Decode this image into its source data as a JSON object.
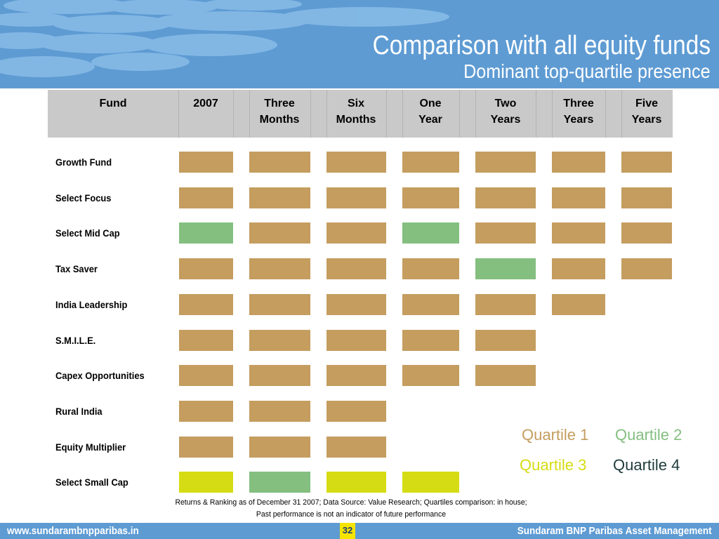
{
  "title": "Comparison with all equity funds",
  "subtitle": "Dominant top-quartile presence",
  "columns": [
    "Fund",
    "2007",
    "Three Months",
    "Six Months",
    "One Year",
    "Two Years",
    "Three Years",
    "Five Years"
  ],
  "column_lines": {
    "fund": [
      "Fund"
    ],
    "y2007": [
      "2007"
    ],
    "m3": [
      "Three",
      "Months"
    ],
    "m6": [
      "Six",
      "Months"
    ],
    "y1": [
      "One",
      "Year"
    ],
    "y2": [
      "Two",
      "Years"
    ],
    "y3": [
      "Three",
      "Years"
    ],
    "y5": [
      "Five",
      "Years"
    ]
  },
  "quartile_colors": {
    "1": "#c49d5f",
    "2": "#84bf80",
    "3": "#d6dc14",
    "4": "#1f3b3b"
  },
  "funds": [
    {
      "name": "Growth Fund",
      "quartiles": [
        1,
        1,
        1,
        1,
        1,
        1,
        1
      ]
    },
    {
      "name": "Select Focus",
      "quartiles": [
        1,
        1,
        1,
        1,
        1,
        1,
        1
      ]
    },
    {
      "name": "Select Mid Cap",
      "quartiles": [
        2,
        1,
        1,
        2,
        1,
        1,
        1
      ]
    },
    {
      "name": "Tax Saver",
      "quartiles": [
        1,
        1,
        1,
        1,
        2,
        1,
        1
      ]
    },
    {
      "name": "India Leadership",
      "quartiles": [
        1,
        1,
        1,
        1,
        1,
        1,
        null
      ]
    },
    {
      "name": "S.M.I.L.E.",
      "quartiles": [
        1,
        1,
        1,
        1,
        1,
        null,
        null
      ]
    },
    {
      "name": "Capex Opportunities",
      "quartiles": [
        1,
        1,
        1,
        1,
        1,
        null,
        null
      ]
    },
    {
      "name": "Rural India",
      "quartiles": [
        1,
        1,
        1,
        null,
        null,
        null,
        null
      ]
    },
    {
      "name": "Equity Multiplier",
      "quartiles": [
        1,
        1,
        1,
        null,
        null,
        null,
        null
      ]
    },
    {
      "name": "Select Small Cap",
      "quartiles": [
        3,
        2,
        3,
        3,
        null,
        null,
        null
      ]
    }
  ],
  "legend": {
    "q1": "Quartile 1",
    "q2": "Quartile 2",
    "q3": "Quartile 3",
    "q4": "Quartile 4"
  },
  "footnotes": {
    "line1": "Returns & Ranking as of December 31 2007; Data Source: Value Research; Quartiles comparison: in house;",
    "line2": "Past performance is not an indicator of future performance"
  },
  "footer": {
    "website": "www.sundarambnpparibas.in",
    "page_number": "32",
    "company": "Sundaram BNP Paribas Asset Management"
  }
}
